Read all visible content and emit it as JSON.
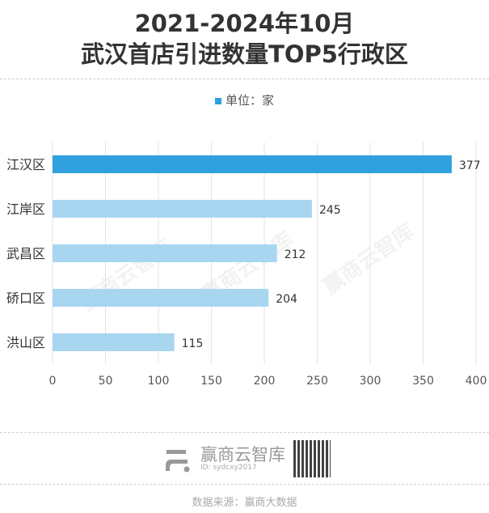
{
  "title_line1": "2021-2024年10月",
  "title_line2": "武汉首店引进数量TOP5行政区",
  "legend": "单位：家",
  "watermark": "赢商云智库",
  "brand": {
    "name": "赢商云智库",
    "id": "ID: sydcxy2017"
  },
  "source": "数据来源：赢商大数据",
  "colors": {
    "highlight": "#30a0de",
    "normal": "#a8d6f0"
  },
  "chart_data": {
    "type": "bar",
    "orientation": "horizontal",
    "categories": [
      "江汉区",
      "江岸区",
      "武昌区",
      "硚口区",
      "洪山区"
    ],
    "values": [
      377,
      245,
      212,
      204,
      115
    ],
    "xlim": [
      0,
      400
    ],
    "xticks": [
      "0",
      "50",
      "100",
      "150",
      "200",
      "250",
      "300",
      "350",
      "400"
    ],
    "grid": true,
    "legend_placement": "top",
    "series": [
      {
        "name": "单位：家",
        "values": [
          377,
          245,
          212,
          204,
          115
        ]
      }
    ]
  }
}
